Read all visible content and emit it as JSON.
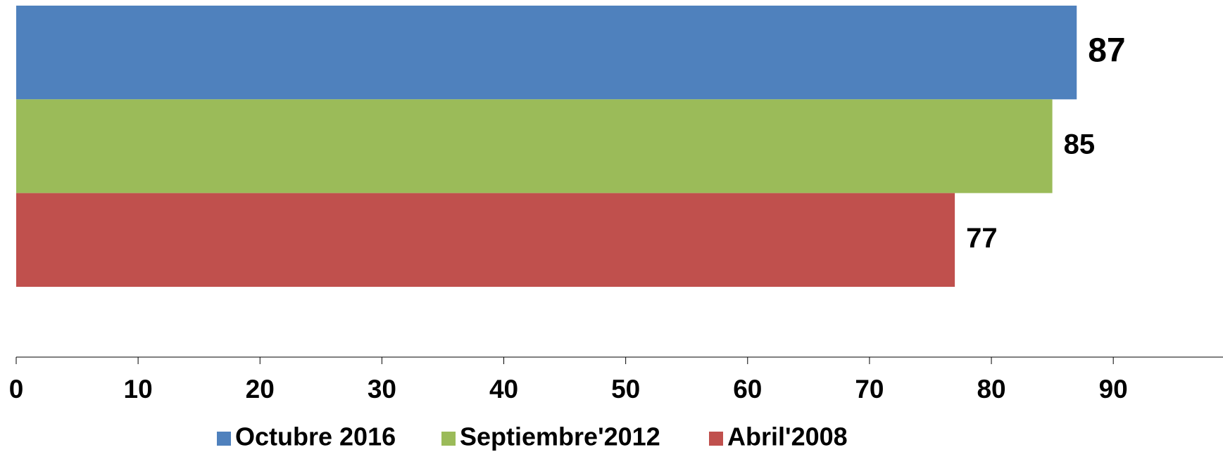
{
  "chart_data": {
    "type": "bar",
    "orientation": "horizontal",
    "categories": [
      null
    ],
    "series": [
      {
        "name": "Octubre 2016",
        "color": "#4f81bd",
        "values": [
          87
        ]
      },
      {
        "name": "Septiembre'2012",
        "color": "#9bbb59",
        "values": [
          85
        ]
      },
      {
        "name": "Abril'2008",
        "color": "#c0504d",
        "values": [
          77
        ]
      }
    ],
    "xlim": [
      0,
      99
    ],
    "xticks": [
      0,
      10,
      20,
      30,
      40,
      50,
      60,
      70,
      80,
      90
    ],
    "grid": false,
    "legend": "bottom"
  }
}
